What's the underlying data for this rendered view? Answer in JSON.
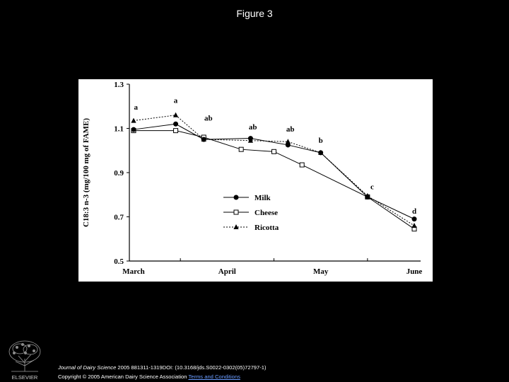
{
  "slide": {
    "title": "Figure 3"
  },
  "chart_data": {
    "type": "line",
    "categories": [
      "March",
      "April",
      "May",
      "June"
    ],
    "x": [
      0,
      0.5,
      1,
      1.5,
      2,
      2.5,
      3,
      3.5,
      4,
      4.5,
      5,
      5.5,
      6
    ],
    "ylabel": "C18:3 n-3  (mg/100 mg of FAME)",
    "ylim": [
      0.5,
      1.3
    ],
    "yticks": [
      "0.5",
      "0.7",
      "0.9",
      "1.1",
      "1.3"
    ],
    "series": [
      {
        "name": "Milk",
        "marker": "circle-filled",
        "line": "solid",
        "values": [
          1.095,
          1.12,
          1.05,
          1.055,
          1.025,
          0.99,
          0.79,
          0.69
        ],
        "x": [
          0,
          0.9,
          1.5,
          2.5,
          3.3,
          4.0,
          5.0,
          6.0
        ]
      },
      {
        "name": "Cheese",
        "marker": "square-open",
        "line": "solid",
        "values": [
          1.09,
          1.09,
          1.06,
          1.005,
          0.995,
          0.935,
          0.79,
          0.645
        ],
        "x": [
          0,
          0.9,
          1.5,
          2.3,
          3.0,
          3.6,
          5.0,
          6.0
        ]
      },
      {
        "name": "Ricotta",
        "marker": "triangle-filled",
        "line": "dotted",
        "values": [
          1.135,
          1.16,
          1.05,
          1.045,
          1.04,
          0.99,
          0.795,
          0.66
        ],
        "x": [
          0,
          0.9,
          1.5,
          2.5,
          3.3,
          4.0,
          5.0,
          6.0
        ]
      }
    ],
    "annotations": [
      {
        "text": "a",
        "x": 0.05,
        "y": 1.185
      },
      {
        "text": "a",
        "x": 0.9,
        "y": 1.215
      },
      {
        "text": "ab",
        "x": 1.6,
        "y": 1.135
      },
      {
        "text": "ab",
        "x": 2.55,
        "y": 1.095
      },
      {
        "text": "ab",
        "x": 3.35,
        "y": 1.085
      },
      {
        "text": "b",
        "x": 4.0,
        "y": 1.035
      },
      {
        "text": "c",
        "x": 5.1,
        "y": 0.825
      },
      {
        "text": "d",
        "x": 6.0,
        "y": 0.715
      }
    ],
    "legend": {
      "position": "right-middle"
    },
    "grid": false
  },
  "footer": {
    "journal": "Journal of Dairy Science",
    "citation": " 2005 881311-1319DOI: (10.3168/jds.S0022-0302(05)72797-1)",
    "copyright": "Copyright © 2005 American Dairy Science Association",
    "terms_link": "Terms and Conditions"
  }
}
